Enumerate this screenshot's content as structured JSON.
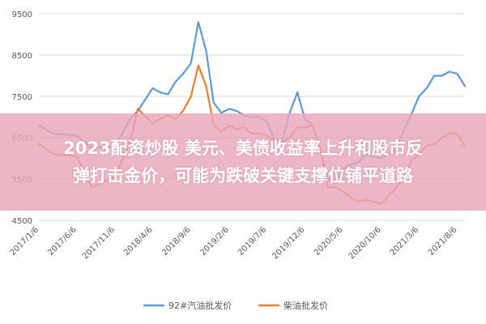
{
  "banner": {
    "line1": "2023配资炒股 美元、美债收益率上升和股市反",
    "line2": "弹打击金价，可能为跌破关键支撑位铺平道路"
  },
  "colors": {
    "series1": "#5B9BD5",
    "series2": "#ED7D31",
    "grid": "#D9D9D9",
    "banner": "#E8A6BA"
  },
  "chart_data": {
    "type": "line",
    "title": "",
    "xlabel": "",
    "ylabel": "",
    "ylim": [
      4500,
      9500
    ],
    "yticks": [
      {
        "value": 9500,
        "label": "9500"
      },
      {
        "value": 8500,
        "label": "8500"
      },
      {
        "value": 7500,
        "label": "7500"
      },
      {
        "value": 6500,
        "label": "6500"
      },
      {
        "value": 5500,
        "label": "5500"
      },
      {
        "value": 4500,
        "label": "4500"
      }
    ],
    "x_tick_labels": [
      "2017/1/6",
      "2017/6/6",
      "2017/11/6",
      "2018/4/6",
      "2018/9/6",
      "2019/2/6",
      "2019/7/6",
      "2019/12/6",
      "2020/5/6",
      "2020/10/6",
      "2021/3/6",
      "2021/8/6"
    ],
    "x": [
      "2017/1/6",
      "2017/3/6",
      "2017/6/6",
      "2017/8/6",
      "2017/11/6",
      "2018/1/6",
      "2018/2/6",
      "2018/4/6",
      "2018/5/6",
      "2018/6/6",
      "2018/7/6",
      "2018/8/6",
      "2018/9/6",
      "2018/10/6",
      "2018/11/6",
      "2018/12/6",
      "2019/1/6",
      "2019/2/6",
      "2019/3/6",
      "2019/4/6",
      "2019/5/6",
      "2019/6/6",
      "2019/7/6",
      "2019/8/6",
      "2019/9/6",
      "2019/10/6",
      "2019/11/6",
      "2019/12/6",
      "2020/1/6",
      "2020/2/6",
      "2020/3/6",
      "2020/4/6",
      "2020/5/6",
      "2020/6/6",
      "2020/7/6",
      "2020/8/6",
      "2020/10/6",
      "2020/12/6",
      "2021/1/6",
      "2021/2/6",
      "2021/3/6",
      "2021/4/6",
      "2021/5/6",
      "2021/6/6",
      "2021/7/6",
      "2021/8/6",
      "2021/9/6"
    ],
    "series": [
      {
        "name": "92#汽油批发价",
        "color": "#5B9BD5",
        "values": [
          6800,
          6600,
          6550,
          6250,
          6300,
          6950,
          7150,
          7700,
          7600,
          7550,
          7850,
          8050,
          8300,
          9300,
          8600,
          7350,
          7100,
          7200,
          7150,
          7050,
          7000,
          7000,
          6900,
          6450,
          6450,
          7100,
          7600,
          6950,
          6800,
          6200,
          5500,
          5400,
          5750,
          5850,
          5900,
          6100,
          6000,
          6200,
          6700,
          7100,
          7500,
          7700,
          8000,
          8000,
          8100,
          8050,
          7750
        ]
      },
      {
        "name": "柴油批发价",
        "color": "#ED7D31",
        "values": [
          6350,
          6100,
          6050,
          5300,
          5550,
          6400,
          7200,
          6850,
          6950,
          7050,
          6950,
          7150,
          7500,
          8250,
          7750,
          6800,
          6650,
          6800,
          6700,
          6750,
          6600,
          6600,
          6550,
          6450,
          6400,
          6500,
          6750,
          6750,
          6800,
          6200,
          5300,
          5300,
          5200,
          5050,
          4950,
          5000,
          4900,
          5300,
          5600,
          5950,
          6100,
          6300,
          6350,
          6500,
          6600,
          6600,
          6300
        ]
      }
    ],
    "grid": true,
    "legend_position": "bottom-center"
  }
}
